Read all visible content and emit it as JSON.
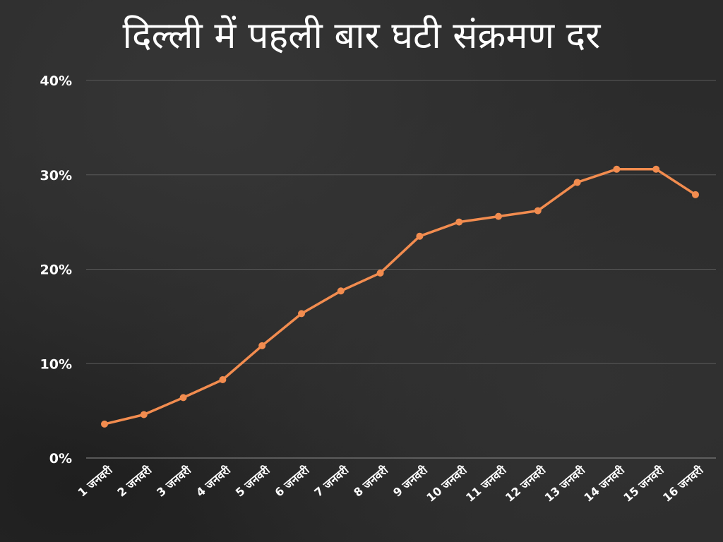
{
  "chart_data": {
    "type": "line",
    "title": "दिल्ली में पहली बार घटी संक्रमण दर",
    "xlabel": "",
    "ylabel": "",
    "categories": [
      "1 जनवरी",
      "2 जनवरी",
      "3 जनवरी",
      "4 जनवरी",
      "5 जनवरी",
      "6 जनवरी",
      "7 जनवरी",
      "8 जनवरी",
      "9 जनवरी",
      "10 जनवरी",
      "11 जनवरी",
      "12 जनवरी",
      "13 जनवरी",
      "14 जनवरी",
      "15 जनवरी",
      "16 जनवरी"
    ],
    "series": [
      {
        "values": [
          3.6,
          4.6,
          6.4,
          8.3,
          11.9,
          15.3,
          17.7,
          19.6,
          23.5,
          25.0,
          25.6,
          26.2,
          29.2,
          30.6,
          30.6,
          27.9
        ],
        "color": "#f28c4f"
      }
    ],
    "ylim": [
      0,
      40
    ],
    "yticks": [
      0,
      10,
      20,
      30,
      40
    ],
    "ytick_labels": [
      "0%",
      "10%",
      "20%",
      "30%",
      "40%"
    ],
    "grid": true,
    "legend": "none",
    "colors": {
      "background": "#2b2b2b",
      "text": "#ffffff",
      "grid": "#5a5a5a"
    }
  }
}
